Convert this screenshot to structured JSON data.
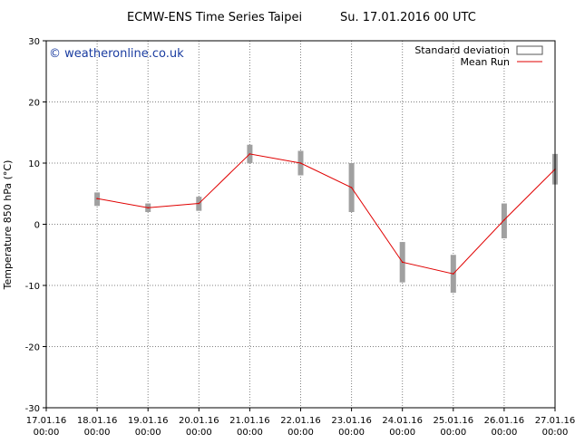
{
  "header": {
    "title_left": "ECMW-ENS Time Series Taipei",
    "title_right": "Su. 17.01.2016 00 UTC"
  },
  "watermark": "© weatheronline.co.uk",
  "colors": {
    "mean_line": "#e00000",
    "std_bar": "#a0a0a0",
    "grid": "#808080",
    "watermark": "#1a3ca0"
  },
  "chart_data": {
    "type": "line",
    "ylabel": "Temperature 850 hPa (°C)",
    "xlabel": "",
    "ylim": [
      -30,
      30
    ],
    "yticks": [
      -30,
      -20,
      -10,
      0,
      10,
      20,
      30
    ],
    "xlim": [
      0,
      10
    ],
    "x_tick_labels": [
      {
        "date": "17.01.16",
        "time": "00:00"
      },
      {
        "date": "18.01.16",
        "time": "00:00"
      },
      {
        "date": "19.01.16",
        "time": "00:00"
      },
      {
        "date": "20.01.16",
        "time": "00:00"
      },
      {
        "date": "21.01.16",
        "time": "00:00"
      },
      {
        "date": "22.01.16",
        "time": "00:00"
      },
      {
        "date": "23.01.16",
        "time": "00:00"
      },
      {
        "date": "24.01.16",
        "time": "00:00"
      },
      {
        "date": "25.01.16",
        "time": "00:00"
      },
      {
        "date": "26.01.16",
        "time": "00:00"
      },
      {
        "date": "27.01.16",
        "time": "00:00"
      }
    ],
    "grid": true,
    "legend_position": "top-right",
    "legend": [
      {
        "name": "Standard deviation",
        "kind": "box"
      },
      {
        "name": "Mean Run",
        "kind": "line"
      }
    ],
    "series": [
      {
        "name": "Mean Run",
        "x": [
          "18.01.16",
          "19.01.16",
          "20.01.16",
          "21.01.16",
          "22.01.16",
          "23.01.16",
          "24.01.16",
          "25.01.16",
          "26.01.16",
          "27.01.16"
        ],
        "values": [
          4.2,
          2.7,
          3.4,
          11.5,
          10.0,
          6.0,
          -6.2,
          -8.1,
          0.7,
          9.0
        ]
      },
      {
        "name": "Standard deviation",
        "x": [
          "18.01.16",
          "19.01.16",
          "20.01.16",
          "21.01.16",
          "22.01.16",
          "23.01.16",
          "24.01.16",
          "25.01.16",
          "26.01.16",
          "27.01.16"
        ],
        "low": [
          3.0,
          2.0,
          2.2,
          10.0,
          8.0,
          2.0,
          -9.5,
          -11.2,
          -2.3,
          6.5
        ],
        "high": [
          5.2,
          3.4,
          4.5,
          13.0,
          12.0,
          10.0,
          -2.9,
          -5.0,
          3.4,
          11.5
        ]
      }
    ]
  }
}
